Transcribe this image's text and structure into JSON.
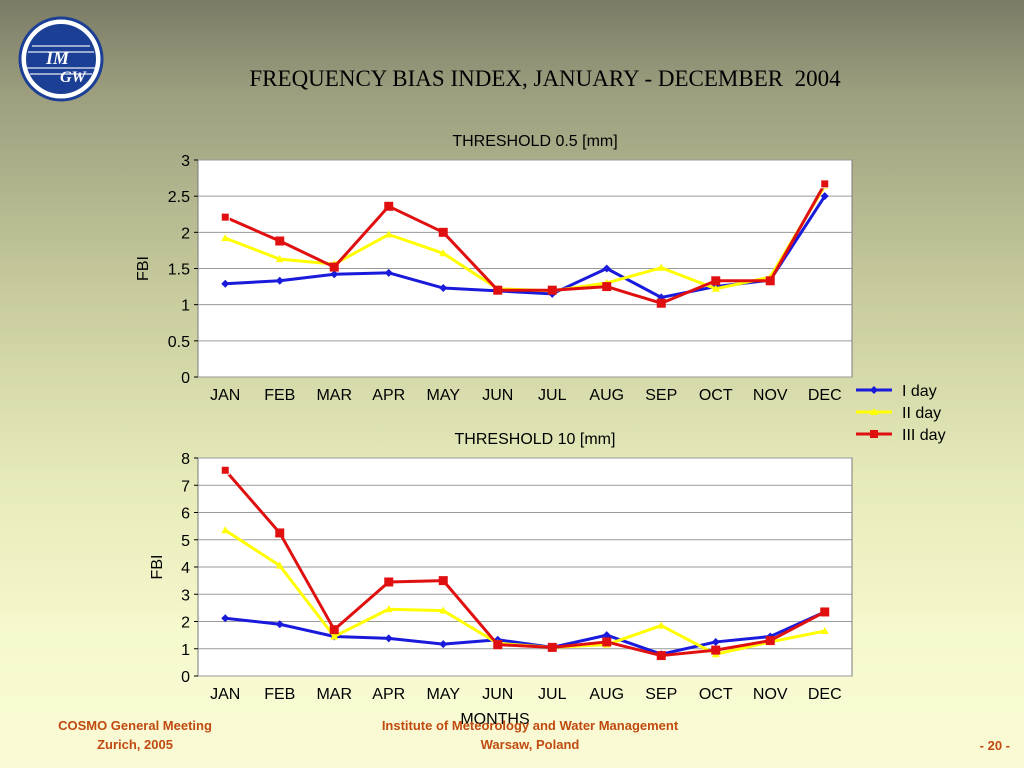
{
  "header": {
    "title": "FREQUENCY BIAS INDEX, JANUARY - DECEMBER  2004",
    "logo_text_1": "IM",
    "logo_text_2": "GW"
  },
  "footer": {
    "left_line1": "COSMO General Meeting",
    "left_line2": "Zurich, 2005",
    "center_line1": "Institute of Meteorology and Water Management",
    "center_line2": "Warsaw, Poland",
    "page": "- 20 -"
  },
  "colors": {
    "I_day": "#1a1adc",
    "II_day": "#ffff00",
    "III_day": "#e01010",
    "footer_text": "#c04a10",
    "logo": "#1b3f94"
  },
  "chart_data": [
    {
      "type": "line",
      "title": "THRESHOLD 0.5 [mm]",
      "xlabel": "",
      "ylabel": "FBI",
      "categories": [
        "JAN",
        "FEB",
        "MAR",
        "APR",
        "MAY",
        "JUN",
        "JUL",
        "AUG",
        "SEP",
        "OCT",
        "NOV",
        "DEC"
      ],
      "ylim": [
        0,
        3
      ],
      "yticks": [
        "0",
        "0.5",
        "1",
        "1.5",
        "2",
        "2.5",
        "3"
      ],
      "grid": true,
      "series": [
        {
          "name": "I day",
          "marker": "diamond",
          "values": [
            1.29,
            1.33,
            1.42,
            1.44,
            1.23,
            1.19,
            1.15,
            1.5,
            1.1,
            1.25,
            1.34,
            2.5
          ]
        },
        {
          "name": "II day",
          "marker": "triangle",
          "values": [
            1.92,
            1.63,
            1.56,
            1.97,
            1.71,
            1.22,
            1.19,
            1.3,
            1.51,
            1.22,
            1.38,
            2.64
          ]
        },
        {
          "name": "III day",
          "marker": "square",
          "values": [
            2.21,
            1.88,
            1.52,
            2.36,
            2.0,
            1.2,
            1.2,
            1.25,
            1.02,
            1.33,
            1.33,
            2.67
          ]
        }
      ]
    },
    {
      "type": "line",
      "title": "THRESHOLD 10 [mm]",
      "xlabel": "MONTHS",
      "ylabel": "FBI",
      "categories": [
        "JAN",
        "FEB",
        "MAR",
        "APR",
        "MAY",
        "JUN",
        "JUL",
        "AUG",
        "SEP",
        "OCT",
        "NOV",
        "DEC"
      ],
      "ylim": [
        0,
        8
      ],
      "yticks": [
        "0",
        "1",
        "2",
        "3",
        "4",
        "5",
        "6",
        "7",
        "8"
      ],
      "grid": true,
      "series": [
        {
          "name": "I day",
          "marker": "diamond",
          "values": [
            2.12,
            1.9,
            1.45,
            1.38,
            1.17,
            1.33,
            1.05,
            1.5,
            0.8,
            1.25,
            1.45,
            2.35
          ]
        },
        {
          "name": "II day",
          "marker": "triangle",
          "values": [
            5.35,
            4.05,
            1.45,
            2.45,
            2.4,
            1.2,
            1.05,
            1.15,
            1.85,
            0.8,
            1.25,
            1.65
          ]
        },
        {
          "name": "III day",
          "marker": "square",
          "values": [
            7.55,
            5.25,
            1.7,
            3.45,
            3.5,
            1.15,
            1.05,
            1.25,
            0.75,
            0.95,
            1.3,
            2.35
          ]
        }
      ]
    }
  ],
  "legend": {
    "position": "right",
    "items": [
      "I day",
      "II day",
      "III day"
    ]
  }
}
